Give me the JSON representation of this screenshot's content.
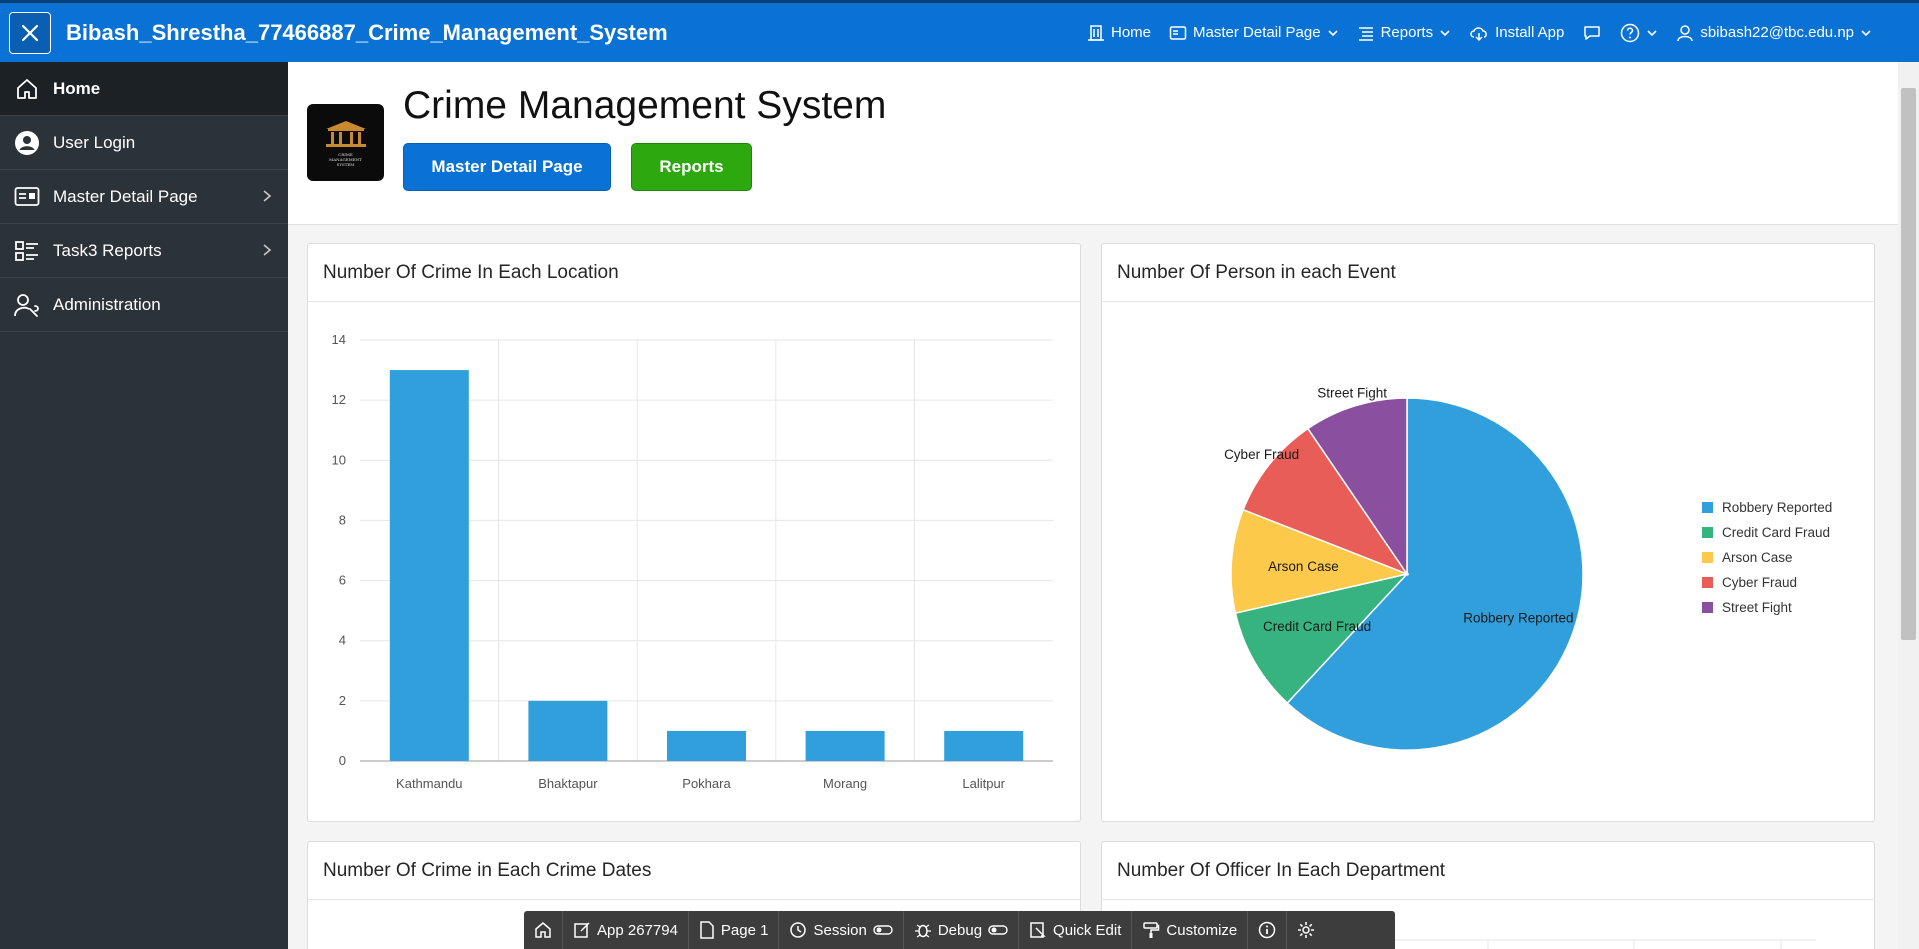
{
  "header": {
    "app_title": "Bibash_Shrestha_77466887_Crime_Management_System",
    "nav": [
      {
        "label": "Home",
        "icon": "building-icon"
      },
      {
        "label": "Master Detail Page",
        "icon": "card-icon",
        "dropdown": true
      },
      {
        "label": "Reports",
        "icon": "list-icon",
        "dropdown": true
      },
      {
        "label": "Install App",
        "icon": "cloud-download-icon"
      }
    ],
    "user": "sbibash22@tbc.edu.np"
  },
  "sidebar": {
    "items": [
      {
        "label": "Home",
        "icon": "home-icon",
        "active": true
      },
      {
        "label": "User Login",
        "icon": "user-circle-icon"
      },
      {
        "label": "Master Detail Page",
        "icon": "card-icon",
        "has_children": true
      },
      {
        "label": "Task3 Reports",
        "icon": "list-icon",
        "has_children": true
      },
      {
        "label": "Administration",
        "icon": "user-wrench-icon"
      }
    ]
  },
  "hero": {
    "title": "Crime Management System",
    "logo_text": "CRIME MANAGEMENT SYSTEM",
    "buttons": [
      {
        "label": "Master Detail Page",
        "color": "#0a72d4"
      },
      {
        "label": "Reports",
        "color": "#2ea80f"
      }
    ]
  },
  "cards": {
    "location_title": "Number Of Crime In Each Location",
    "event_title": "Number Of Person in each Event",
    "dates_title": "Number Of Crime in Each Crime Dates",
    "department_title": "Number Of Officer In Each Department"
  },
  "chart_data": [
    {
      "type": "bar",
      "title": "Number Of Crime In Each Location",
      "categories": [
        "Kathmandu",
        "Bhaktapur",
        "Pokhara",
        "Morang",
        "Lalitpur"
      ],
      "values": [
        13,
        2,
        1,
        1,
        1
      ],
      "ylim": [
        0,
        14
      ],
      "yticks": [
        0,
        2,
        4,
        6,
        8,
        10,
        12,
        14
      ],
      "color": "#309fdb",
      "grid": true
    },
    {
      "type": "pie",
      "title": "Number Of Person in each Event",
      "categories": [
        "Robbery Reported",
        "Credit Card Fraud",
        "Arson Case",
        "Cyber Fraud",
        "Street Fight"
      ],
      "values": [
        13,
        2,
        2,
        2,
        2
      ],
      "colors": [
        "#309fdb",
        "#36b37e",
        "#fcc94a",
        "#e85d58",
        "#8a4f9e"
      ],
      "legend": "right"
    }
  ],
  "devbar": {
    "items": [
      "App 267794",
      "Page 1",
      "Session",
      "Debug",
      "Quick Edit",
      "Customize"
    ]
  }
}
